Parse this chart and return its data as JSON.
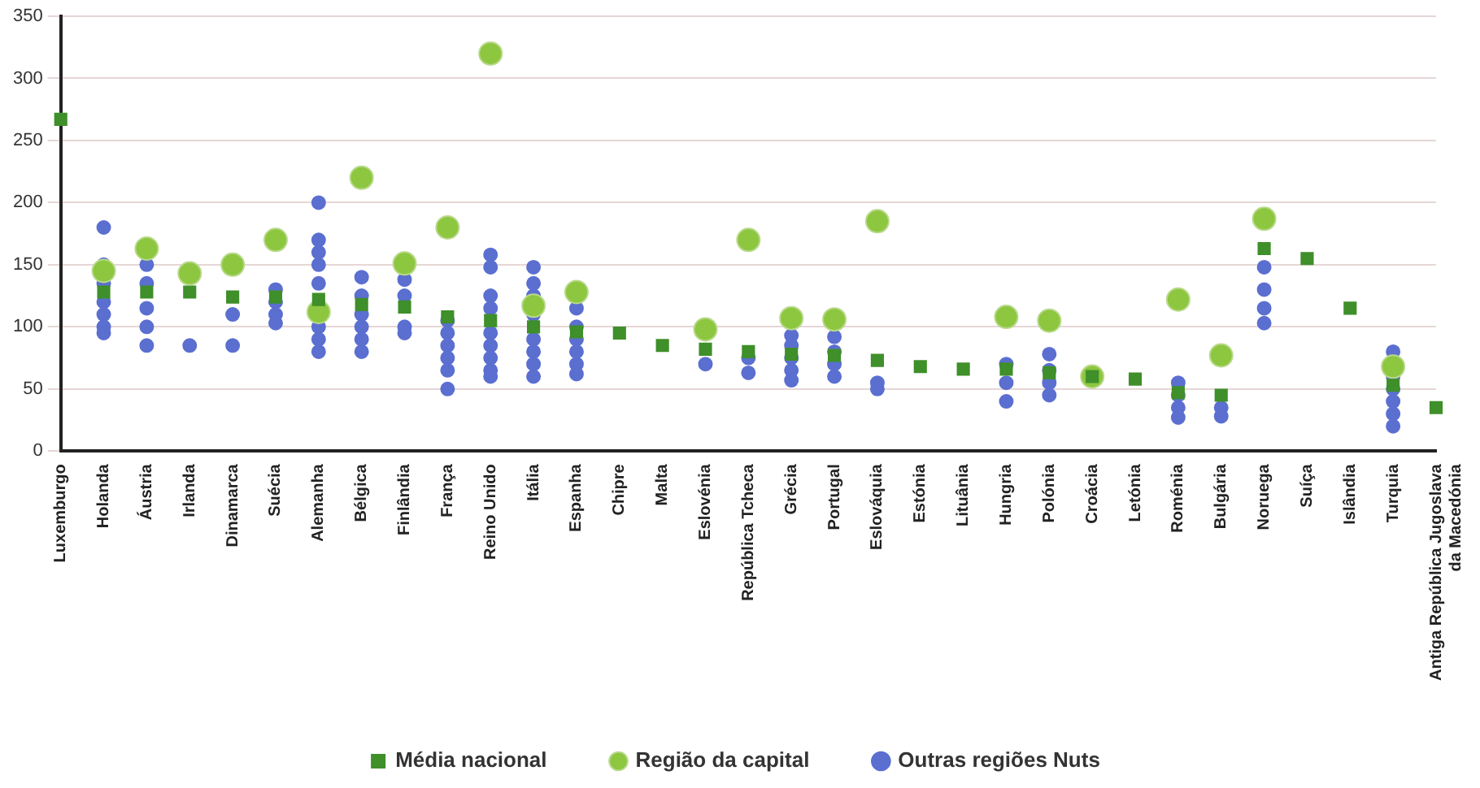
{
  "chart_data": {
    "type": "scatter",
    "categories": [
      "Luxemburgo",
      "Holanda",
      "Áustria",
      "Irlanda",
      "Dinamarca",
      "Suécia",
      "Alemanha",
      "Bélgica",
      "Finlândia",
      "França",
      "Reino Unido",
      "Itália",
      "Espanha",
      "Chipre",
      "Malta",
      "Eslovénia",
      "República Tcheca",
      "Grécia",
      "Portugal",
      "Eslováquia",
      "Estónia",
      "Lituânia",
      "Hungria",
      "Polónia",
      "Croácia",
      "Letónia",
      "Roménia",
      "Bulgária",
      "Noruega",
      "Suíça",
      "Islândia",
      "Turquia",
      "Antiga República Jugoslava da Macedónia"
    ],
    "series": [
      {
        "name": "Região da capital",
        "color": "#8dc63f",
        "marker": "circle",
        "values": [
          null,
          145,
          163,
          143,
          150,
          170,
          112,
          220,
          151,
          180,
          320,
          117,
          128,
          null,
          null,
          98,
          170,
          107,
          106,
          185,
          null,
          null,
          108,
          105,
          60,
          null,
          122,
          77,
          187,
          null,
          null,
          68,
          null
        ]
      },
      {
        "name": "Média nacional",
        "color": "#3f8f2a",
        "marker": "square",
        "values": [
          267,
          128,
          128,
          128,
          124,
          124,
          122,
          118,
          116,
          108,
          105,
          100,
          96,
          95,
          85,
          82,
          80,
          78,
          77,
          73,
          68,
          66,
          66,
          63,
          60,
          58,
          47,
          45,
          163,
          155,
          115,
          53,
          35
        ]
      },
      {
        "name": "Outras regiões Nuts",
        "color": "#5b6fd0",
        "marker": "circle",
        "x": [
          "Holanda",
          "Holanda",
          "Holanda",
          "Holanda",
          "Holanda",
          "Holanda",
          "Holanda",
          "Áustria",
          "Áustria",
          "Áustria",
          "Áustria",
          "Áustria",
          "Irlanda",
          "Dinamarca",
          "Dinamarca",
          "Suécia",
          "Suécia",
          "Suécia",
          "Suécia",
          "Alemanha",
          "Alemanha",
          "Alemanha",
          "Alemanha",
          "Alemanha",
          "Alemanha",
          "Alemanha",
          "Alemanha",
          "Bélgica",
          "Bélgica",
          "Bélgica",
          "Bélgica",
          "Bélgica",
          "Bélgica",
          "Finlândia",
          "Finlândia",
          "Finlândia",
          "Finlândia",
          "França",
          "França",
          "França",
          "França",
          "França",
          "França",
          "Reino Unido",
          "Reino Unido",
          "Reino Unido",
          "Reino Unido",
          "Reino Unido",
          "Reino Unido",
          "Reino Unido",
          "Reino Unido",
          "Reino Unido",
          "Reino Unido",
          "Itália",
          "Itália",
          "Itália",
          "Itália",
          "Itália",
          "Itália",
          "Itália",
          "Itália",
          "Itália",
          "Espanha",
          "Espanha",
          "Espanha",
          "Espanha",
          "Espanha",
          "Espanha",
          "Eslovénia",
          "República Tcheca",
          "República Tcheca",
          "Grécia",
          "Grécia",
          "Grécia",
          "Grécia",
          "Grécia",
          "Portugal",
          "Portugal",
          "Portugal",
          "Portugal",
          "Eslováquia",
          "Eslováquia",
          "Hungria",
          "Hungria",
          "Hungria",
          "Polónia",
          "Polónia",
          "Polónia",
          "Polónia",
          "Roménia",
          "Roménia",
          "Roménia",
          "Roménia",
          "Bulgária",
          "Bulgária",
          "Bulgária",
          "Noruega",
          "Noruega",
          "Noruega",
          "Noruega",
          "Turquia",
          "Turquia",
          "Turquia",
          "Turquia",
          "Turquia",
          "Turquia"
        ],
        "values": [
          180,
          150,
          135,
          120,
          110,
          100,
          95,
          150,
          135,
          115,
          100,
          85,
          85,
          110,
          85,
          130,
          120,
          110,
          103,
          200,
          170,
          160,
          150,
          135,
          100,
          90,
          80,
          140,
          125,
          110,
          100,
          90,
          80,
          138,
          125,
          100,
          95,
          105,
          95,
          85,
          75,
          65,
          50,
          158,
          148,
          125,
          115,
          null,
          95,
          85,
          75,
          65,
          60,
          148,
          135,
          125,
          110,
          null,
          90,
          80,
          70,
          60,
          115,
          100,
          90,
          80,
          70,
          62,
          70,
          75,
          63,
          93,
          85,
          75,
          65,
          57,
          92,
          80,
          70,
          60,
          55,
          50,
          70,
          55,
          40,
          78,
          65,
          55,
          45,
          55,
          45,
          35,
          27,
          null,
          35,
          28,
          148,
          130,
          115,
          103,
          80,
          60,
          50,
          40,
          30,
          20
        ]
      }
    ],
    "ylim": [
      0,
      350
    ],
    "yticks": [
      0,
      50,
      100,
      150,
      200,
      250,
      300,
      350
    ],
    "grid": "y",
    "legend": "bottom"
  }
}
